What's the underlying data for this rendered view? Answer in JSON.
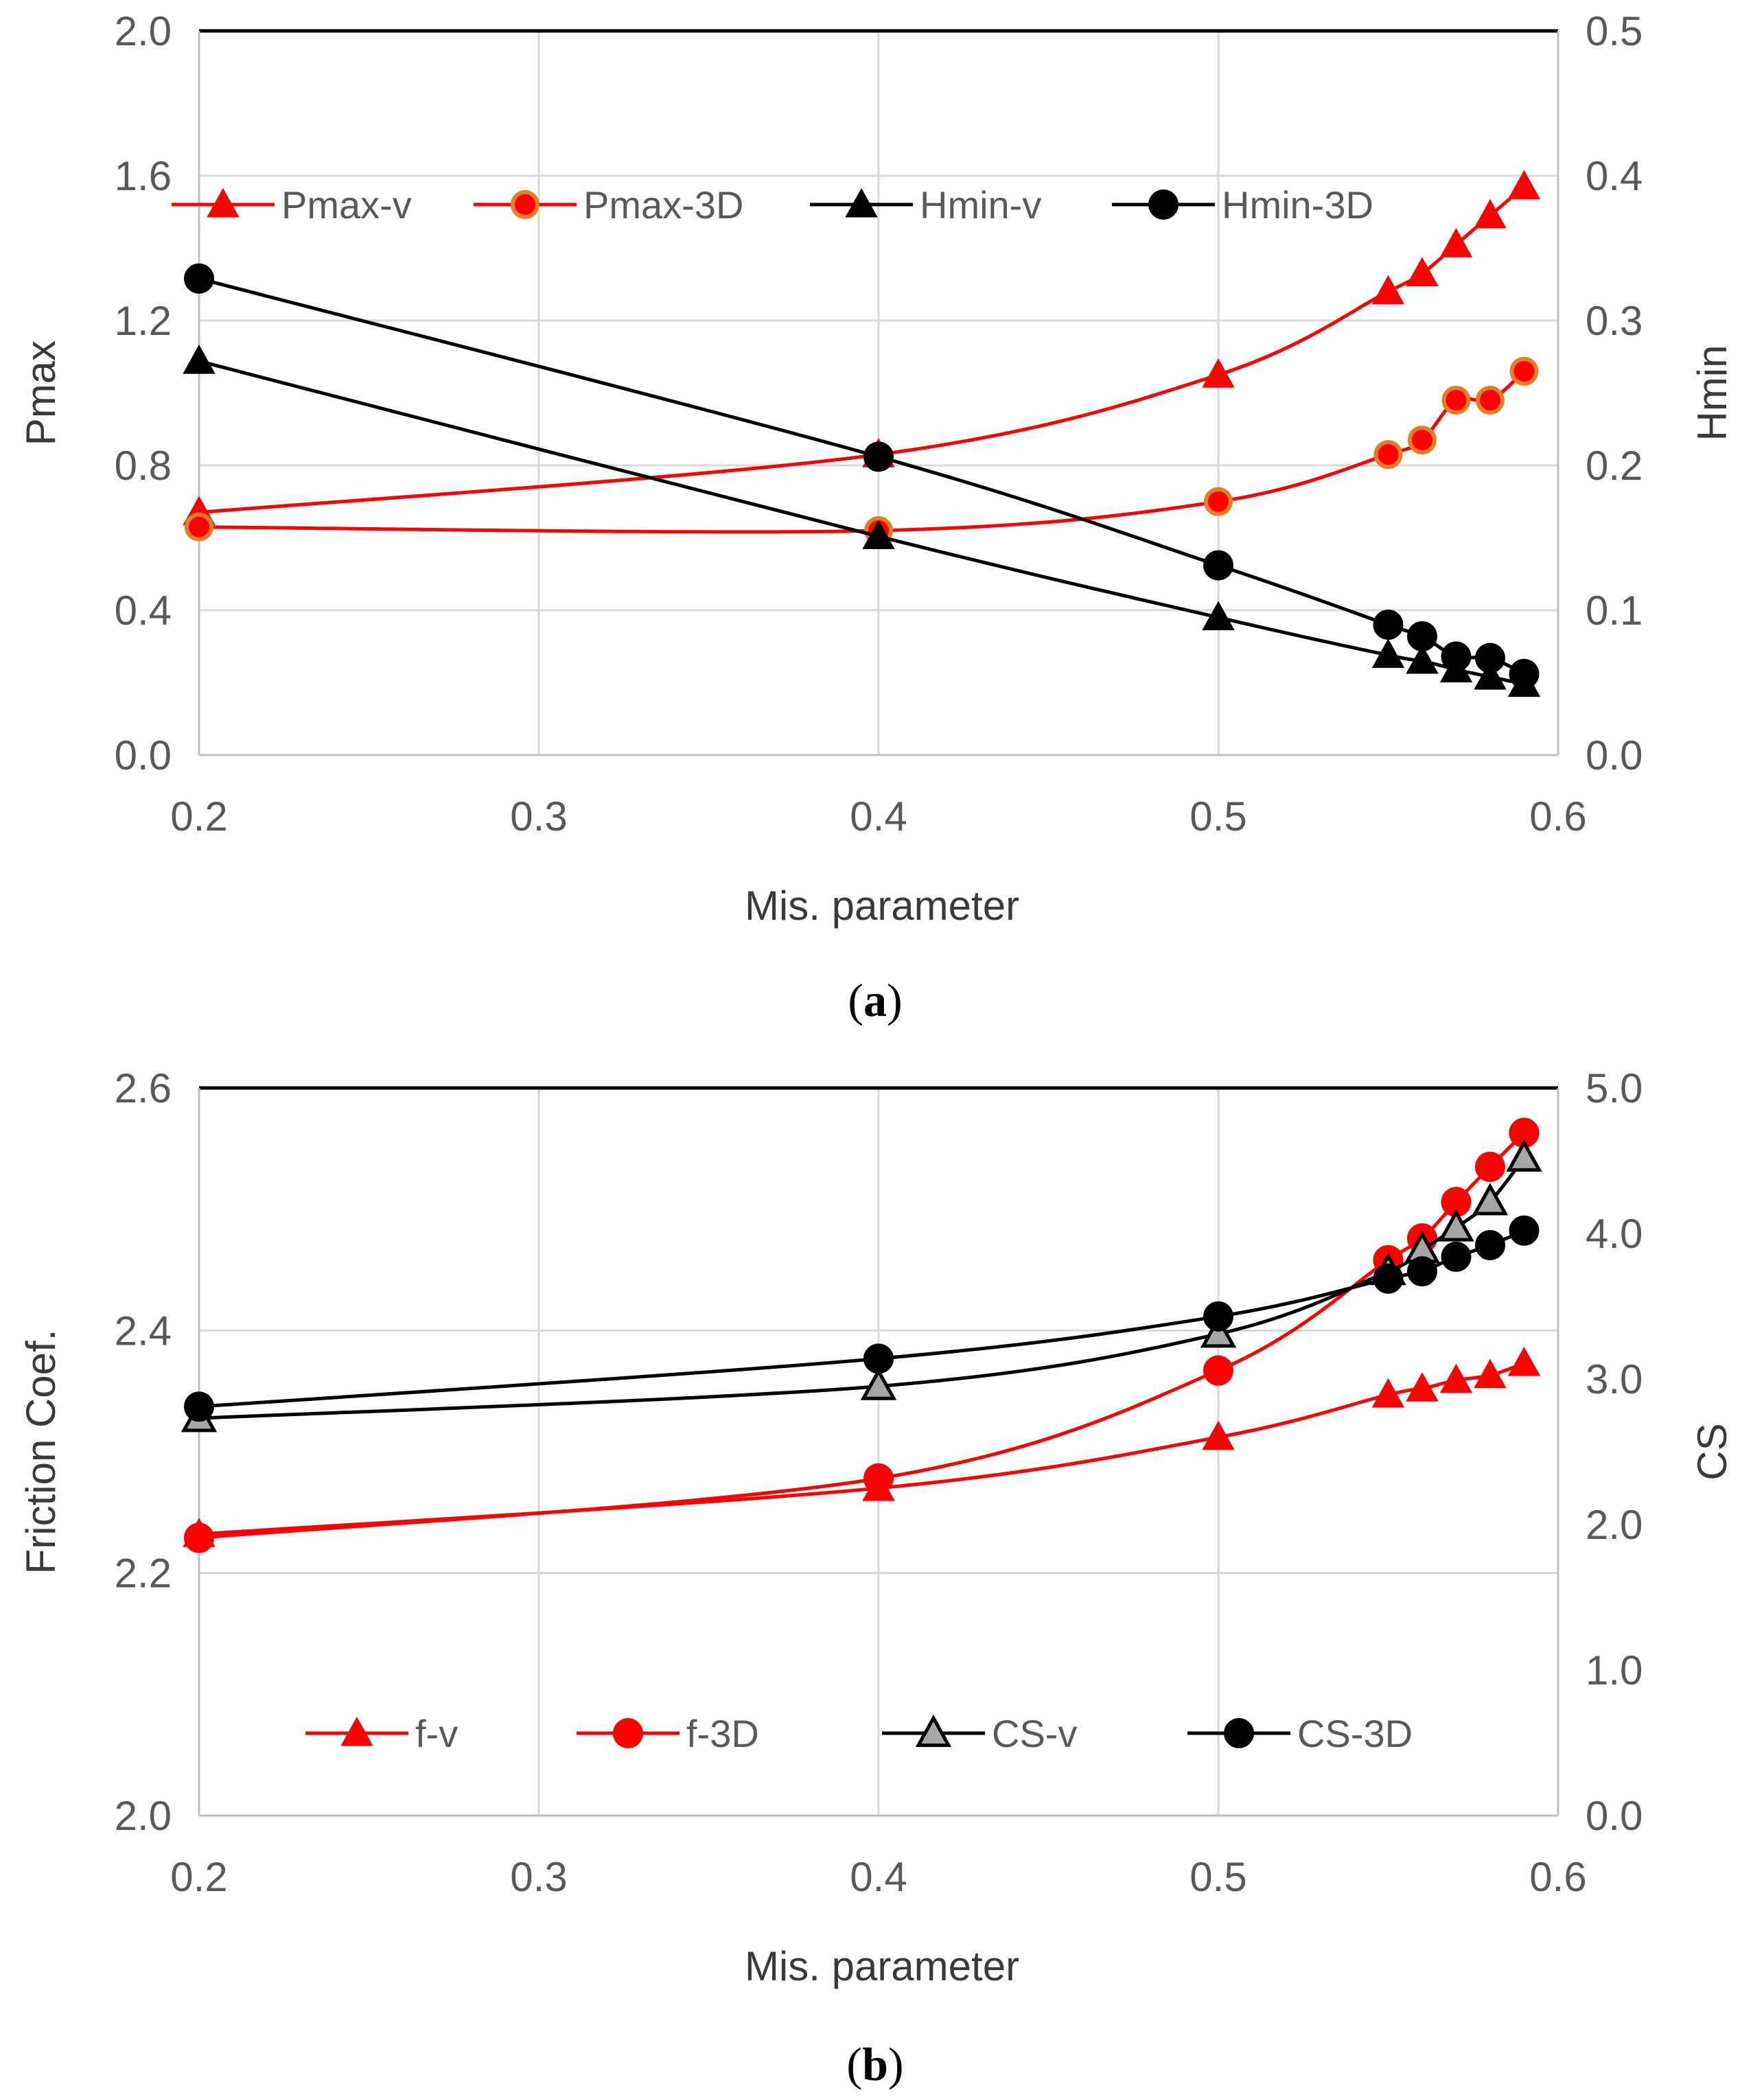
{
  "colors": {
    "red": "#ff0000",
    "black": "#000000",
    "grid": "#d9d9d9",
    "axis": "#bfbfbf",
    "marker_orange_edge": "#e67e22",
    "marker_gray": "#a6a6a6"
  },
  "chart_data": [
    {
      "type": "line",
      "panel_label": "a",
      "xlabel": "Mis. parameter",
      "ylabel": "Pmax",
      "y2label": "Hmin",
      "xlim": [
        0.2,
        0.6
      ],
      "ylim": [
        0.0,
        2.0
      ],
      "y2lim": [
        0.0,
        0.5
      ],
      "x_ticks": [
        "0.2",
        "0.3",
        "0.4",
        "0.5",
        "0.6"
      ],
      "y_ticks": [
        "0.0",
        "0.4",
        "0.8",
        "1.2",
        "1.6",
        "2.0"
      ],
      "y2_ticks": [
        "0.0",
        "0.1",
        "0.2",
        "0.3",
        "0.4",
        "0.5"
      ],
      "grid": true,
      "legend_position": "top",
      "series": [
        {
          "name": "Pmax-v",
          "axis": "left",
          "color": "#ff0000",
          "marker": "triangle",
          "x": [
            0.2,
            0.4,
            0.5,
            0.55,
            0.56,
            0.57,
            0.58,
            0.59
          ],
          "y": [
            0.67,
            0.83,
            1.05,
            1.28,
            1.33,
            1.41,
            1.49,
            1.57
          ]
        },
        {
          "name": "Pmax-3D",
          "axis": "left",
          "color": "#ff0000",
          "marker": "circle-orange",
          "x": [
            0.2,
            0.4,
            0.5,
            0.55,
            0.56,
            0.57,
            0.58,
            0.59
          ],
          "y": [
            0.63,
            0.62,
            0.7,
            0.83,
            0.87,
            0.98,
            0.98,
            1.06
          ]
        },
        {
          "name": "Hmin-v",
          "axis": "right",
          "color": "#000000",
          "marker": "triangle",
          "x": [
            0.2,
            0.4,
            0.5,
            0.55,
            0.56,
            0.57,
            0.58,
            0.59
          ],
          "y": [
            0.272,
            0.151,
            0.095,
            0.069,
            0.065,
            0.059,
            0.054,
            0.049
          ]
        },
        {
          "name": "Hmin-3D",
          "axis": "right",
          "color": "#000000",
          "marker": "circle",
          "x": [
            0.2,
            0.4,
            0.5,
            0.55,
            0.56,
            0.57,
            0.58,
            0.59
          ],
          "y": [
            0.329,
            0.206,
            0.131,
            0.09,
            0.082,
            0.068,
            0.067,
            0.056
          ]
        }
      ]
    },
    {
      "type": "line",
      "panel_label": "b",
      "xlabel": "Mis. parameter",
      "ylabel": "Friction Coef.",
      "y2label": "CS",
      "xlim": [
        0.2,
        0.6
      ],
      "ylim": [
        2.0,
        2.6
      ],
      "y2lim": [
        0.0,
        5.0
      ],
      "x_ticks": [
        "0.2",
        "0.3",
        "0.4",
        "0.5",
        "0.6"
      ],
      "y_ticks": [
        "2.0",
        "2.2",
        "2.4",
        "2.6"
      ],
      "y2_ticks": [
        "0.0",
        "1.0",
        "2.0",
        "3.0",
        "4.0",
        "5.0"
      ],
      "grid": true,
      "legend_position": "bottom",
      "series": [
        {
          "name": "f-v",
          "axis": "left",
          "color": "#ff0000",
          "marker": "triangle",
          "x": [
            0.2,
            0.4,
            0.5,
            0.55,
            0.56,
            0.57,
            0.58,
            0.59
          ],
          "y": [
            2.232,
            2.27,
            2.312,
            2.347,
            2.352,
            2.359,
            2.363,
            2.373
          ]
        },
        {
          "name": "f-3D",
          "axis": "left",
          "color": "#ff0000",
          "marker": "circle",
          "x": [
            0.2,
            0.4,
            0.5,
            0.55,
            0.56,
            0.57,
            0.58,
            0.59
          ],
          "y": [
            2.229,
            2.278,
            2.367,
            2.458,
            2.476,
            2.506,
            2.535,
            2.563
          ]
        },
        {
          "name": "CS-v",
          "axis": "right",
          "color": "#000000",
          "marker": "triangle-gray",
          "x": [
            0.2,
            0.4,
            0.5,
            0.55,
            0.56,
            0.57,
            0.58,
            0.59
          ],
          "y": [
            2.73,
            2.95,
            3.31,
            3.74,
            3.89,
            4.04,
            4.22,
            4.52
          ]
        },
        {
          "name": "CS-3D",
          "axis": "right",
          "color": "#000000",
          "marker": "circle",
          "x": [
            0.2,
            0.4,
            0.5,
            0.55,
            0.56,
            0.57,
            0.58,
            0.59
          ],
          "y": [
            2.81,
            3.14,
            3.43,
            3.69,
            3.74,
            3.84,
            3.92,
            4.02
          ]
        }
      ]
    }
  ]
}
